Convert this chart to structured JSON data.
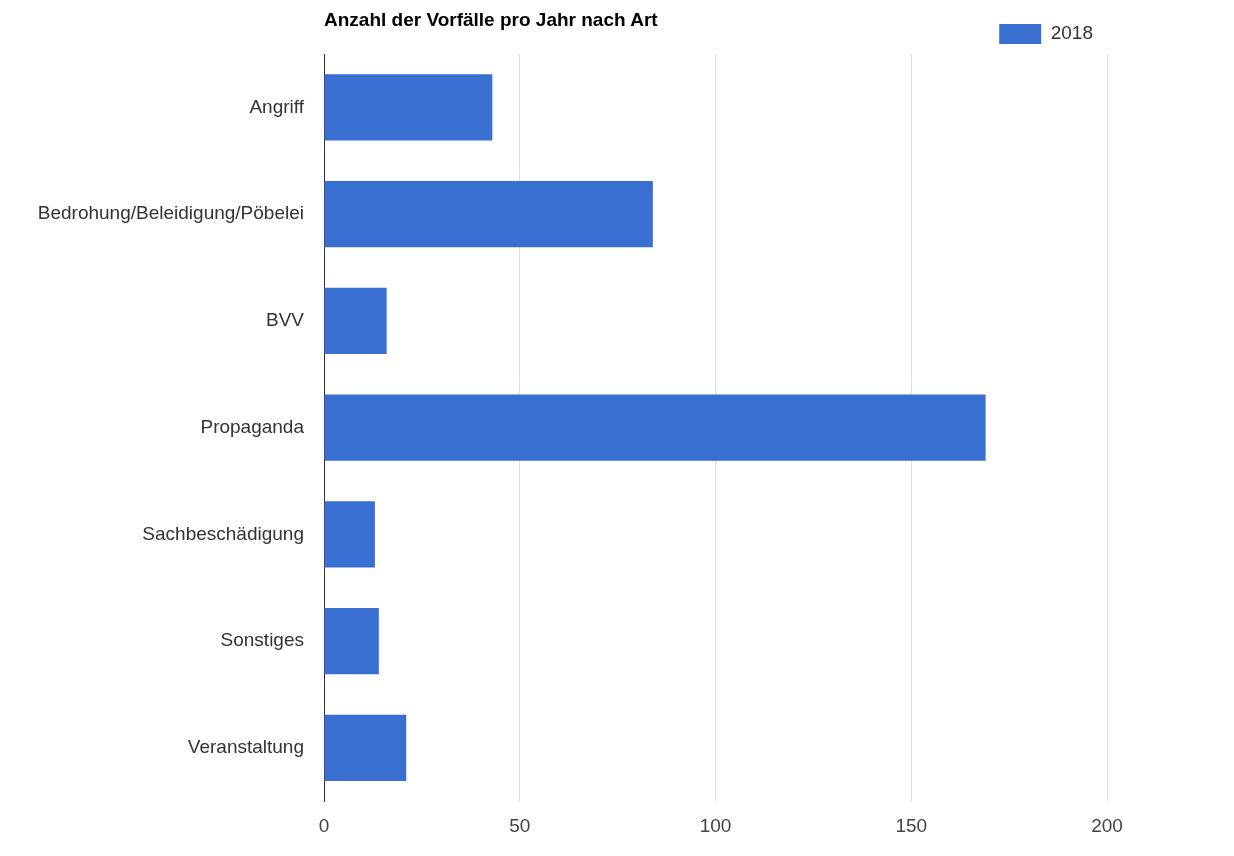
{
  "chart_data": {
    "type": "bar",
    "orientation": "horizontal",
    "title": "Anzahl der Vorfälle pro Jahr nach Art",
    "categories": [
      "Angriff",
      "Bedrohung/Beleidigung/Pöbelei",
      "BVV",
      "Propaganda",
      "Sachbeschädigung",
      "Sonstiges",
      "Veranstaltung"
    ],
    "series": [
      {
        "name": "2018",
        "color": "#3a6fd2",
        "values": [
          43,
          84,
          16,
          169,
          13,
          14,
          21
        ]
      }
    ],
    "xlim": [
      0,
      200
    ],
    "xticks": [
      0,
      50,
      100,
      150,
      200
    ],
    "grid": "x",
    "legend": "top right"
  }
}
